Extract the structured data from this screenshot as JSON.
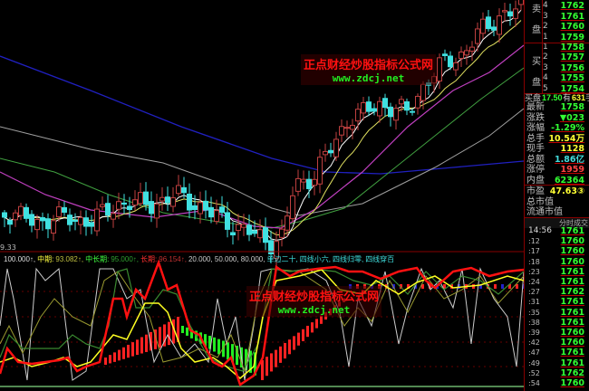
{
  "main_chart": {
    "axis_label_left": "9.33",
    "candle_up_color": "#c04040",
    "candle_down_color": "#40e0e0",
    "ma_colors": [
      "#ffffff",
      "#e0e060",
      "#c040c0",
      "#40a040",
      "#a0a0a0",
      "#2020c0"
    ]
  },
  "watermark": {
    "cn": "正点财经炒股指标公式网",
    "url": "www.zdcj.net"
  },
  "indicator": {
    "labels": [
      {
        "text": "100.000↑,",
        "color": "#dddddd"
      },
      {
        "text": "中期:",
        "color": "#ffff40"
      },
      {
        "text": "93.082↑,",
        "color": "#c0c040"
      },
      {
        "text": "中长期:",
        "color": "#40ff40"
      },
      {
        "text": "95.000↑,",
        "color": "#30a030"
      },
      {
        "text": "长期:",
        "color": "#ff3030"
      },
      {
        "text": "96.154↑,",
        "color": "#c03030"
      },
      {
        "text": "20.000, 50.000, 80.000,",
        "color": "#cccccc"
      },
      {
        "text": "单边二十,",
        "color": "#40e0e0"
      },
      {
        "text": "四线小六,",
        "color": "#40e0e0"
      },
      {
        "text": "四线归零,",
        "color": "#40e0e0"
      },
      {
        "text": "四线穿百",
        "color": "#40e0e0"
      }
    ]
  },
  "order_book": {
    "sell_label": [
      "卖",
      "盘"
    ],
    "buy_label": [
      "买",
      "盘"
    ],
    "sell": [
      {
        "n": "4",
        "price": "1762"
      },
      {
        "n": "3",
        "price": "1761"
      },
      {
        "n": "2",
        "price": "1760"
      },
      {
        "n": "1",
        "price": "1759"
      }
    ],
    "buy": [
      {
        "n": "1",
        "price": "1758"
      },
      {
        "n": "2",
        "price": "1757"
      },
      {
        "n": "3",
        "price": "1756"
      },
      {
        "n": "4",
        "price": "1755"
      },
      {
        "n": "5",
        "price": "1754"
      }
    ],
    "bid_summary": {
      "label": "买盘",
      "price": "17.50",
      "mid": "有",
      "qty": "631",
      "unit": "手"
    }
  },
  "quote": [
    {
      "label": "最新",
      "value": "1758",
      "color": "green"
    },
    {
      "label": "涨跌",
      "value": "▼023",
      "color": "green"
    },
    {
      "label": "涨幅",
      "value": "-1.29%",
      "color": "green"
    },
    {
      "label": "总手",
      "value": "10.54万",
      "color": "yel"
    },
    {
      "label": "现手",
      "value": "1128",
      "color": "yel"
    },
    {
      "label": "总额",
      "value": "1.86亿",
      "color": "cyan"
    },
    {
      "label": "涨停",
      "value": "1959",
      "color": "red"
    },
    {
      "label": "内盘",
      "value": "62364",
      "color": "green"
    }
  ],
  "valuation": [
    {
      "label": "市盈",
      "value": "47.63③",
      "color": "yel"
    },
    {
      "label": "总市值",
      "value": ""
    },
    {
      "label": "流通市值",
      "value": ""
    }
  ],
  "ticks": {
    "header": "分时成交",
    "rows": [
      {
        "t": "14:56",
        "p": "1761"
      },
      {
        "t": ":12",
        "p": "1760"
      },
      {
        "t": ":17",
        "p": "1760"
      },
      {
        "t": ":18",
        "p": "1760"
      },
      {
        "t": ":23",
        "p": "1761"
      },
      {
        "t": ":24",
        "p": "1761"
      },
      {
        "t": ":27",
        "p": "1762"
      },
      {
        "t": ":31",
        "p": "1761"
      },
      {
        "t": ":35",
        "p": "1761"
      },
      {
        "t": ":38",
        "p": "1761"
      },
      {
        "t": ":39",
        "p": "1760"
      },
      {
        "t": ":42",
        "p": "1760"
      },
      {
        "t": ":47",
        "p": "1761"
      },
      {
        "t": ":49",
        "p": "1761"
      },
      {
        "t": ":52",
        "p": "1762"
      },
      {
        "t": ":54",
        "p": "1760"
      }
    ]
  }
}
